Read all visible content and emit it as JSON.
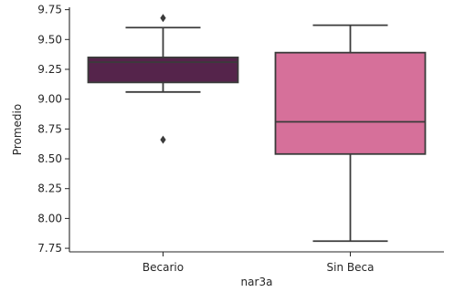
{
  "chart_data": {
    "type": "box",
    "xlabel": "nar3a",
    "ylabel": "Promedio",
    "ylim": [
      7.72,
      9.77
    ],
    "yticks": [
      "7.75",
      "8.00",
      "8.25",
      "8.50",
      "8.75",
      "9.00",
      "9.25",
      "9.50",
      "9.75"
    ],
    "grid": false,
    "categories": [
      "Becario",
      "Sin Beca"
    ],
    "boxes": [
      {
        "category": "Becario",
        "color": "#55244b",
        "whisker_low": 9.06,
        "q1": 9.14,
        "median": 9.31,
        "q3": 9.35,
        "whisker_high": 9.6,
        "outliers": [
          9.68,
          8.66
        ]
      },
      {
        "category": "Sin Beca",
        "color": "#d6709a",
        "whisker_low": 7.81,
        "q1": 8.54,
        "median": 8.81,
        "q3": 9.39,
        "whisker_high": 9.62,
        "outliers": []
      }
    ]
  }
}
